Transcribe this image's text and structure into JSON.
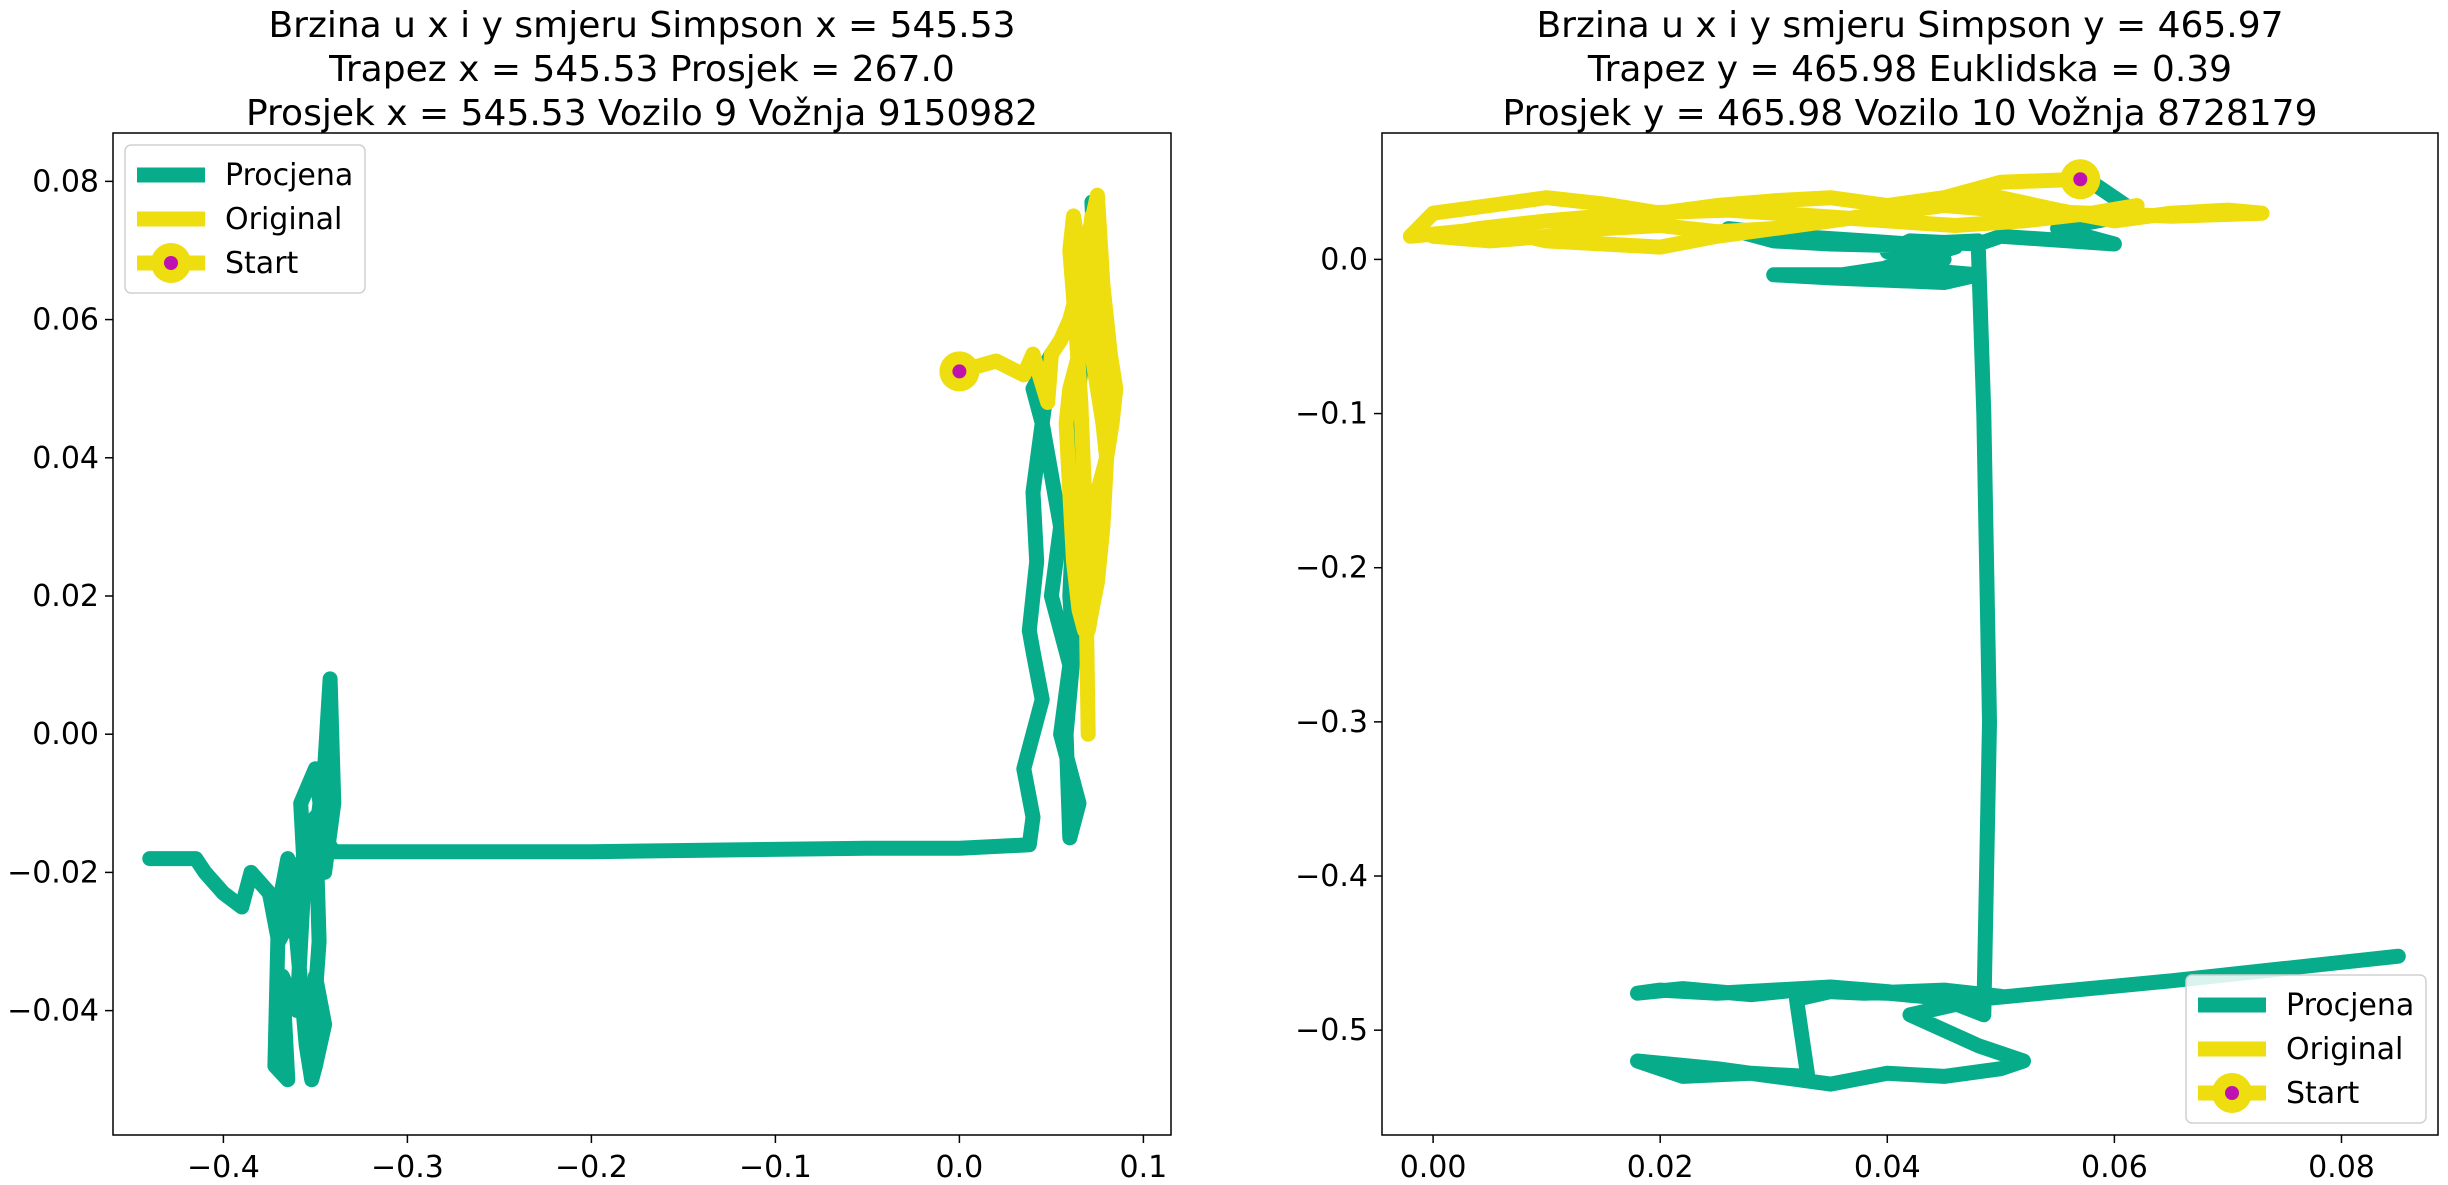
{
  "colors": {
    "procjena": "#07ad8a",
    "original": "#eedd0f",
    "start_dot": "#bf10b0",
    "axis": "#000000"
  },
  "chart_data": [
    {
      "type": "line",
      "title_lines": [
        "Brzina u x i y smjeru Simpson x = 545.53",
        "Trapez x = 545.53 Prosjek = 267.0",
        "Prosjek x = 545.53 Vozilo 9 Vožnja 9150982"
      ],
      "xlim": [
        -0.46,
        0.115
      ],
      "ylim": [
        -0.058,
        0.087
      ],
      "xticks": [
        -0.4,
        -0.3,
        -0.2,
        -0.1,
        0.0,
        0.1
      ],
      "xtick_labels": [
        "−0.4",
        "−0.3",
        "−0.2",
        "−0.1",
        "0.0",
        "0.1"
      ],
      "yticks": [
        -0.04,
        -0.02,
        0.0,
        0.02,
        0.04,
        0.06,
        0.08
      ],
      "ytick_labels": [
        "−0.04",
        "−0.02",
        "0.00",
        "0.02",
        "0.04",
        "0.06",
        "0.08"
      ],
      "legend": {
        "position": "upper left",
        "entries": [
          "Procjena",
          "Original",
          "Start"
        ]
      },
      "series": [
        {
          "name": "Procjena",
          "x": [
            -0.44,
            -0.43,
            -0.415,
            -0.41,
            -0.4,
            -0.39,
            -0.385,
            -0.375,
            -0.37,
            -0.36,
            -0.365,
            -0.355,
            -0.35,
            -0.345,
            -0.342,
            -0.34,
            -0.345,
            -0.35,
            -0.348,
            -0.352,
            -0.35,
            -0.345,
            -0.35,
            -0.352,
            -0.355,
            -0.36,
            -0.365,
            -0.37,
            -0.372,
            -0.365,
            -0.368,
            -0.36,
            -0.356,
            -0.358,
            -0.35,
            -0.345,
            -0.34,
            -0.2,
            -0.05,
            0.0,
            0.038,
            0.04,
            0.035,
            0.045,
            0.04,
            0.038,
            0.042,
            0.04,
            0.045,
            0.04,
            0.05,
            0.045,
            0.055,
            0.05,
            0.06,
            0.055,
            0.065,
            0.06,
            0.058,
            0.062,
            0.06,
            0.065,
            0.07,
            0.07,
            0.075,
            0.072
          ],
          "y": [
            -0.018,
            -0.018,
            -0.018,
            -0.02,
            -0.023,
            -0.025,
            -0.02,
            -0.023,
            -0.03,
            -0.025,
            -0.02,
            -0.018,
            -0.015,
            -0.005,
            0.008,
            -0.01,
            -0.02,
            -0.012,
            -0.03,
            -0.045,
            -0.035,
            -0.042,
            -0.048,
            -0.05,
            -0.045,
            -0.03,
            -0.018,
            -0.025,
            -0.048,
            -0.05,
            -0.035,
            -0.04,
            -0.02,
            -0.01,
            -0.005,
            -0.015,
            -0.017,
            -0.017,
            -0.0165,
            -0.0165,
            -0.016,
            -0.012,
            -0.005,
            0.005,
            0.012,
            0.015,
            0.025,
            0.035,
            0.045,
            0.05,
            0.055,
            0.045,
            0.03,
            0.02,
            0.01,
            0.0,
            -0.01,
            -0.015,
            0.0,
            0.012,
            0.02,
            0.05,
            0.066,
            0.066,
            0.06,
            0.077
          ]
        },
        {
          "name": "Original",
          "x": [
            0.0,
            0.02,
            0.035,
            0.04,
            0.048,
            0.05,
            0.055,
            0.06,
            0.065,
            0.07,
            0.075,
            0.078,
            0.08,
            0.082,
            0.085,
            0.083,
            0.08,
            0.078,
            0.075,
            0.072,
            0.07,
            0.068,
            0.065,
            0.062,
            0.06,
            0.058,
            0.06,
            0.065,
            0.07,
            0.072,
            0.075,
            0.078,
            0.08,
            0.082,
            0.08,
            0.075,
            0.072,
            0.07,
            0.068,
            0.07,
            0.072,
            0.075,
            0.078,
            0.08,
            0.078,
            0.075,
            0.072,
            0.07,
            0.068,
            0.065,
            0.062,
            0.06,
            0.063,
            0.066,
            0.068,
            0.07
          ],
          "y": [
            0.0525,
            0.054,
            0.052,
            0.055,
            0.048,
            0.055,
            0.057,
            0.06,
            0.065,
            0.072,
            0.078,
            0.065,
            0.06,
            0.055,
            0.05,
            0.045,
            0.04,
            0.035,
            0.03,
            0.025,
            0.02,
            0.015,
            0.018,
            0.025,
            0.035,
            0.045,
            0.05,
            0.055,
            0.07,
            0.075,
            0.068,
            0.06,
            0.055,
            0.05,
            0.04,
            0.035,
            0.03,
            0.025,
            0.02,
            0.015,
            0.018,
            0.022,
            0.03,
            0.04,
            0.045,
            0.05,
            0.055,
            0.06,
            0.065,
            0.07,
            0.075,
            0.07,
            0.06,
            0.048,
            0.035,
            0.0
          ]
        },
        {
          "name": "Start",
          "x": [
            0.0
          ],
          "y": [
            0.0525
          ]
        }
      ]
    },
    {
      "type": "line",
      "title_lines": [
        "Brzina u x i y smjeru Simpson y = 465.97",
        "Trapez y = 465.98 Euklidska = 0.39",
        "Prosjek y = 465.98 Vozilo 10 Vožnja 8728179"
      ],
      "xlim": [
        -0.0045,
        0.0885
      ],
      "ylim": [
        -0.568,
        0.082
      ],
      "xticks": [
        0.0,
        0.02,
        0.04,
        0.06,
        0.08
      ],
      "xtick_labels": [
        "0.00",
        "0.02",
        "0.04",
        "0.06",
        "0.08"
      ],
      "yticks": [
        -0.5,
        -0.4,
        -0.3,
        -0.2,
        -0.1,
        0.0
      ],
      "ytick_labels": [
        "−0.5",
        "−0.4",
        "−0.3",
        "−0.2",
        "−0.1",
        "0.0"
      ],
      "legend": {
        "position": "lower right",
        "entries": [
          "Procjena",
          "Original",
          "Start"
        ]
      },
      "series": [
        {
          "name": "Procjena",
          "x": [
            0.058,
            0.062,
            0.055,
            0.06,
            0.05,
            0.048,
            0.042,
            0.04,
            0.045,
            0.036,
            0.03,
            0.035,
            0.045,
            0.048,
            0.04,
            0.046,
            0.035,
            0.03,
            0.026,
            0.032,
            0.038,
            0.042,
            0.048,
            0.0485,
            0.049,
            0.0485,
            0.045,
            0.04,
            0.035,
            0.03,
            0.025,
            0.02,
            0.018,
            0.022,
            0.028,
            0.032,
            0.038,
            0.045,
            0.05,
            0.046,
            0.04,
            0.035,
            0.032,
            0.0325,
            0.033,
            0.028,
            0.022,
            0.018,
            0.025,
            0.03,
            0.035,
            0.04,
            0.045,
            0.05,
            0.052,
            0.048,
            0.042,
            0.048,
            0.055,
            0.065,
            0.075,
            0.085
          ],
          "y": [
            0.05,
            0.03,
            0.02,
            0.01,
            0.015,
            0.01,
            0.012,
            0.005,
            0.0,
            -0.01,
            -0.01,
            -0.012,
            -0.015,
            -0.01,
            -0.005,
            0.008,
            0.01,
            0.012,
            0.02,
            0.015,
            0.012,
            0.01,
            0.012,
            -0.1,
            -0.3,
            -0.49,
            -0.48,
            -0.475,
            -0.472,
            -0.474,
            -0.476,
            -0.474,
            -0.476,
            -0.473,
            -0.477,
            -0.474,
            -0.476,
            -0.474,
            -0.478,
            -0.48,
            -0.476,
            -0.475,
            -0.48,
            -0.505,
            -0.53,
            -0.528,
            -0.53,
            -0.52,
            -0.525,
            -0.53,
            -0.535,
            -0.528,
            -0.53,
            -0.525,
            -0.52,
            -0.51,
            -0.49,
            -0.48,
            -0.475,
            -0.468,
            -0.46,
            -0.452
          ]
        },
        {
          "name": "Original",
          "x": [
            0.057,
            0.05,
            0.045,
            0.04,
            0.035,
            0.03,
            0.025,
            0.02,
            0.015,
            0.01,
            0.005,
            0.0,
            -0.002,
            0.005,
            0.01,
            0.015,
            0.02,
            0.025,
            0.03,
            0.035,
            0.04,
            0.045,
            0.05,
            0.055,
            0.06,
            0.065,
            0.07,
            0.073,
            0.065,
            0.058,
            0.05,
            0.045,
            0.04,
            0.035,
            0.03,
            0.025,
            0.02,
            0.015,
            0.01,
            0.005,
            0.0,
            0.004,
            0.01,
            0.018,
            0.026,
            0.034,
            0.04,
            0.046,
            0.052,
            0.058,
            0.062
          ],
          "y": [
            0.052,
            0.05,
            0.04,
            0.035,
            0.04,
            0.038,
            0.035,
            0.03,
            0.036,
            0.04,
            0.035,
            0.03,
            0.015,
            0.02,
            0.012,
            0.01,
            0.008,
            0.015,
            0.02,
            0.025,
            0.03,
            0.035,
            0.04,
            0.032,
            0.025,
            0.03,
            0.032,
            0.03,
            0.028,
            0.03,
            0.032,
            0.035,
            0.03,
            0.025,
            0.02,
            0.018,
            0.022,
            0.02,
            0.015,
            0.012,
            0.015,
            0.02,
            0.025,
            0.03,
            0.032,
            0.028,
            0.025,
            0.022,
            0.025,
            0.03,
            0.035
          ]
        },
        {
          "name": "Start",
          "x": [
            0.057
          ],
          "y": [
            0.052
          ]
        }
      ]
    }
  ]
}
